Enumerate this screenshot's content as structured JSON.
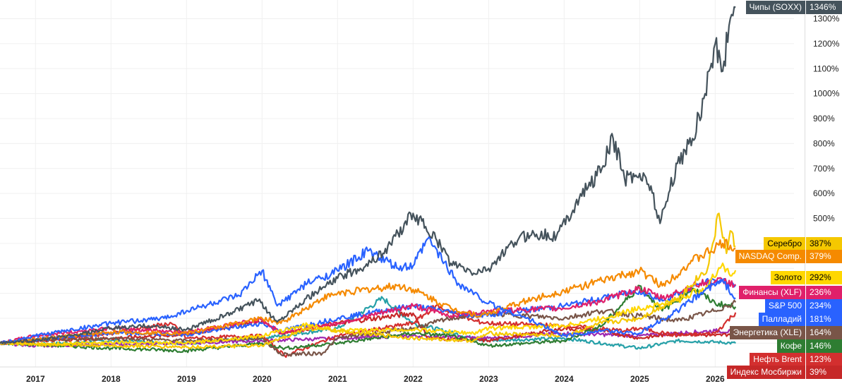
{
  "chart_data": {
    "type": "line",
    "title": "",
    "xlabel": "",
    "ylabel": "",
    "x_ticks": [
      "2017",
      "2018",
      "2019",
      "2020",
      "2021",
      "2022",
      "2023",
      "2024",
      "2025",
      "2026"
    ],
    "y_ticks": [
      "500%",
      "600%",
      "700%",
      "800%",
      "900%",
      "1000%",
      "1100%",
      "1200%",
      "1300%"
    ],
    "xlim": [
      2016.53,
      2027.05
    ],
    "ylim": [
      -95,
      1375
    ],
    "grid": true,
    "series": [
      {
        "name": "Чипы (SOXX)",
        "label": "1346%",
        "color": "#45535c",
        "text": "#fff",
        "points": [
          [
            2016.53,
            0
          ],
          [
            2017,
            12
          ],
          [
            2017.5,
            30
          ],
          [
            2018,
            60
          ],
          [
            2018.5,
            70
          ],
          [
            2019,
            55
          ],
          [
            2019.5,
            110
          ],
          [
            2019.95,
            170
          ],
          [
            2020.2,
            85
          ],
          [
            2020.5,
            160
          ],
          [
            2021,
            260
          ],
          [
            2021.3,
            300
          ],
          [
            2021.6,
            360
          ],
          [
            2022,
            520
          ],
          [
            2022.3,
            420
          ],
          [
            2022.5,
            320
          ],
          [
            2022.8,
            280
          ],
          [
            2023,
            300
          ],
          [
            2023.4,
            420
          ],
          [
            2023.6,
            440
          ],
          [
            2023.9,
            430
          ],
          [
            2024.2,
            580
          ],
          [
            2024.5,
            700
          ],
          [
            2024.65,
            820
          ],
          [
            2024.8,
            660
          ],
          [
            2025,
            680
          ],
          [
            2025.15,
            630
          ],
          [
            2025.27,
            480
          ],
          [
            2025.5,
            720
          ],
          [
            2025.7,
            820
          ],
          [
            2025.85,
            980
          ],
          [
            2026,
            1200
          ],
          [
            2026.1,
            1090
          ],
          [
            2026.2,
            1300
          ],
          [
            2026.27,
            1346
          ]
        ]
      },
      {
        "name": "Серебро",
        "label": "387%",
        "color": "#f5c800",
        "text": "#000",
        "points": [
          [
            2016.53,
            0
          ],
          [
            2017,
            -5
          ],
          [
            2018,
            -10
          ],
          [
            2019,
            -15
          ],
          [
            2020,
            -10
          ],
          [
            2020.6,
            60
          ],
          [
            2021,
            50
          ],
          [
            2022,
            20
          ],
          [
            2022.8,
            10
          ],
          [
            2023,
            40
          ],
          [
            2024,
            30
          ],
          [
            2024.5,
            80
          ],
          [
            2025,
            100
          ],
          [
            2025.5,
            180
          ],
          [
            2025.9,
            300
          ],
          [
            2026.05,
            520
          ],
          [
            2026.15,
            360
          ],
          [
            2026.2,
            450
          ],
          [
            2026.27,
            387
          ]
        ]
      },
      {
        "name": "NASDAQ Comp.",
        "label": "379%",
        "color": "#f58a00",
        "text": "#fff",
        "points": [
          [
            2016.53,
            0
          ],
          [
            2017,
            15
          ],
          [
            2018,
            45
          ],
          [
            2019,
            40
          ],
          [
            2020,
            100
          ],
          [
            2020.25,
            80
          ],
          [
            2020.8,
            180
          ],
          [
            2021,
            200
          ],
          [
            2021.8,
            230
          ],
          [
            2022,
            215
          ],
          [
            2022.5,
            140
          ],
          [
            2022.9,
            110
          ],
          [
            2023.5,
            170
          ],
          [
            2024,
            210
          ],
          [
            2024.5,
            250
          ],
          [
            2025,
            290
          ],
          [
            2025.3,
            230
          ],
          [
            2025.7,
            330
          ],
          [
            2026,
            380
          ],
          [
            2026.1,
            400
          ],
          [
            2026.27,
            379
          ]
        ]
      },
      {
        "name": "Золото",
        "label": "292%",
        "color": "#ffd700",
        "text": "#000",
        "points": [
          [
            2016.53,
            0
          ],
          [
            2017,
            -5
          ],
          [
            2018,
            5
          ],
          [
            2019,
            0
          ],
          [
            2020,
            30
          ],
          [
            2020.6,
            75
          ],
          [
            2021,
            50
          ],
          [
            2022,
            55
          ],
          [
            2022.8,
            40
          ],
          [
            2023,
            60
          ],
          [
            2024,
            70
          ],
          [
            2024.5,
            100
          ],
          [
            2025,
            140
          ],
          [
            2025.5,
            170
          ],
          [
            2025.9,
            230
          ],
          [
            2026.1,
            320
          ],
          [
            2026.2,
            270
          ],
          [
            2026.27,
            292
          ]
        ]
      },
      {
        "name": "Финансы (XLF)",
        "label": "236%",
        "color": "#e0206a",
        "text": "#fff",
        "points": [
          [
            2016.53,
            0
          ],
          [
            2017,
            30
          ],
          [
            2018,
            60
          ],
          [
            2019,
            45
          ],
          [
            2020,
            95
          ],
          [
            2020.25,
            40
          ],
          [
            2021,
            80
          ],
          [
            2022,
            150
          ],
          [
            2022.5,
            110
          ],
          [
            2023,
            130
          ],
          [
            2024,
            140
          ],
          [
            2024.5,
            170
          ],
          [
            2025,
            220
          ],
          [
            2025.3,
            180
          ],
          [
            2025.8,
            240
          ],
          [
            2026.1,
            250
          ],
          [
            2026.27,
            236
          ]
        ]
      },
      {
        "name": "S&P 500",
        "label": "234%",
        "color": "#2962ff",
        "text": "#fff",
        "points": [
          [
            2016.53,
            0
          ],
          [
            2017,
            15
          ],
          [
            2018,
            40
          ],
          [
            2019,
            35
          ],
          [
            2020,
            80
          ],
          [
            2020.25,
            50
          ],
          [
            2021,
            100
          ],
          [
            2022,
            150
          ],
          [
            2022.8,
            110
          ],
          [
            2023,
            115
          ],
          [
            2024,
            150
          ],
          [
            2024.5,
            180
          ],
          [
            2025,
            210
          ],
          [
            2025.3,
            170
          ],
          [
            2025.8,
            240
          ],
          [
            2026.1,
            250
          ],
          [
            2026.27,
            234
          ]
        ]
      },
      {
        "name": "Палладий",
        "label": "181%",
        "color": "#2962ff",
        "text": "#fff",
        "points": [
          [
            2016.53,
            0
          ],
          [
            2017,
            30
          ],
          [
            2018,
            80
          ],
          [
            2018.7,
            100
          ],
          [
            2019,
            130
          ],
          [
            2019.7,
            190
          ],
          [
            2020,
            290
          ],
          [
            2020.2,
            150
          ],
          [
            2020.6,
            240
          ],
          [
            2021,
            290
          ],
          [
            2021.4,
            370
          ],
          [
            2021.8,
            300
          ],
          [
            2022,
            310
          ],
          [
            2022.2,
            420
          ],
          [
            2022.6,
            240
          ],
          [
            2023,
            160
          ],
          [
            2023.5,
            100
          ],
          [
            2024,
            30
          ],
          [
            2024.5,
            50
          ],
          [
            2025,
            40
          ],
          [
            2025.5,
            130
          ],
          [
            2025.9,
            220
          ],
          [
            2026.1,
            250
          ],
          [
            2026.27,
            181
          ]
        ]
      },
      {
        "name": "Энергетика (XLE)",
        "label": "164%",
        "color": "#795548",
        "text": "#fff",
        "points": [
          [
            2016.53,
            0
          ],
          [
            2017,
            10
          ],
          [
            2018,
            20
          ],
          [
            2019,
            10
          ],
          [
            2020,
            20
          ],
          [
            2020.25,
            -45
          ],
          [
            2020.8,
            -40
          ],
          [
            2021,
            20
          ],
          [
            2022,
            60
          ],
          [
            2022.5,
            100
          ],
          [
            2023,
            120
          ],
          [
            2024,
            100
          ],
          [
            2024.5,
            130
          ],
          [
            2025,
            110
          ],
          [
            2025.5,
            90
          ],
          [
            2026,
            130
          ],
          [
            2026.27,
            164
          ]
        ]
      },
      {
        "name": "Кофе",
        "label": "146%",
        "color": "#2e7d32",
        "text": "#fff",
        "points": [
          [
            2016.53,
            0
          ],
          [
            2017,
            -5
          ],
          [
            2018,
            -20
          ],
          [
            2019,
            -30
          ],
          [
            2020,
            0
          ],
          [
            2020.3,
            -20
          ],
          [
            2021,
            0
          ],
          [
            2022,
            40
          ],
          [
            2022.5,
            30
          ],
          [
            2023,
            -10
          ],
          [
            2024,
            10
          ],
          [
            2024.5,
            70
          ],
          [
            2025,
            230
          ],
          [
            2025.3,
            130
          ],
          [
            2025.7,
            220
          ],
          [
            2026,
            160
          ],
          [
            2026.27,
            146
          ]
        ]
      },
      {
        "name": "Нефть Brent",
        "label": "123%",
        "color": "#d32f2f",
        "text": "#fff",
        "points": [
          [
            2016.53,
            0
          ],
          [
            2017,
            10
          ],
          [
            2018,
            40
          ],
          [
            2018.8,
            80
          ],
          [
            2019,
            20
          ],
          [
            2020,
            30
          ],
          [
            2020.3,
            -50
          ],
          [
            2021,
            30
          ],
          [
            2022,
            80
          ],
          [
            2022.3,
            150
          ],
          [
            2022.8,
            90
          ],
          [
            2023,
            80
          ],
          [
            2024,
            70
          ],
          [
            2024.8,
            50
          ],
          [
            2025,
            60
          ],
          [
            2025.5,
            30
          ],
          [
            2026,
            40
          ],
          [
            2026.27,
            123
          ]
        ]
      },
      {
        "name": "Индекс Мосбиржи",
        "label": "39%",
        "color": "#c62828",
        "text": "#fff",
        "points": [
          [
            2016.53,
            0
          ],
          [
            2017,
            10
          ],
          [
            2018,
            20
          ],
          [
            2019,
            35
          ],
          [
            2020,
            90
          ],
          [
            2020.25,
            40
          ],
          [
            2021,
            80
          ],
          [
            2022,
            120
          ],
          [
            2022.2,
            20
          ],
          [
            2023,
            10
          ],
          [
            2024,
            60
          ],
          [
            2024.5,
            50
          ],
          [
            2025,
            20
          ],
          [
            2025.5,
            40
          ],
          [
            2026,
            30
          ],
          [
            2026.27,
            39
          ]
        ]
      },
      {
        "name": "",
        "label": "",
        "color": "#26a0a8",
        "text": "#fff",
        "points": [
          [
            2016.53,
            0
          ],
          [
            2017,
            -5
          ],
          [
            2018,
            10
          ],
          [
            2019,
            0
          ],
          [
            2020,
            20
          ],
          [
            2021,
            60
          ],
          [
            2021.6,
            180
          ],
          [
            2022,
            80
          ],
          [
            2022.8,
            20
          ],
          [
            2023,
            10
          ],
          [
            2024,
            20
          ],
          [
            2025,
            -20
          ],
          [
            2025.5,
            10
          ],
          [
            2026,
            5
          ],
          [
            2026.27,
            0
          ]
        ]
      },
      {
        "name": "",
        "label": "",
        "color": "#9c27b0",
        "text": "#fff",
        "points": [
          [
            2016.53,
            0
          ],
          [
            2017,
            -10
          ],
          [
            2018,
            -5
          ],
          [
            2019,
            0
          ],
          [
            2020,
            10
          ],
          [
            2021,
            20
          ],
          [
            2022,
            30
          ],
          [
            2023,
            20
          ],
          [
            2024,
            40
          ],
          [
            2025,
            30
          ],
          [
            2026,
            50
          ],
          [
            2026.27,
            45
          ]
        ]
      }
    ]
  }
}
